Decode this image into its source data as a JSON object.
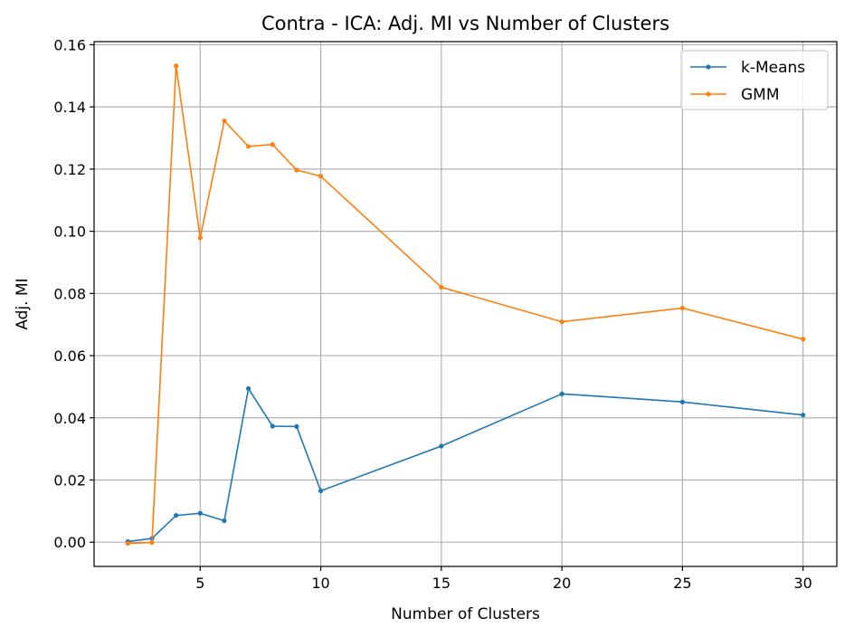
{
  "chart_data": {
    "type": "line",
    "title": "Contra - ICA: Adj. MI vs Number of Clusters",
    "xlabel": "Number of Clusters",
    "ylabel": "Adj. MI",
    "xlim": [
      0.6,
      31.4
    ],
    "ylim": [
      -0.0078,
      0.161
    ],
    "xticks": [
      5,
      10,
      15,
      20,
      25,
      30
    ],
    "yticks": [
      0.0,
      0.02,
      0.04,
      0.06,
      0.08,
      0.1,
      0.12,
      0.14,
      0.16
    ],
    "xtick_labels": [
      "5",
      "10",
      "15",
      "20",
      "25",
      "30"
    ],
    "ytick_labels": [
      "0.00",
      "0.02",
      "0.04",
      "0.06",
      "0.08",
      "0.10",
      "0.12",
      "0.14",
      "0.16"
    ],
    "grid": true,
    "legend_position": "top-right",
    "x": [
      2,
      3,
      4,
      5,
      6,
      7,
      8,
      9,
      10,
      15,
      20,
      25,
      30
    ],
    "series": [
      {
        "name": "k-Means",
        "color": "#1f77b4",
        "values": [
          0.0002,
          0.0012,
          0.0086,
          0.0093,
          0.0069,
          0.0494,
          0.0373,
          0.0372,
          0.0165,
          0.0309,
          0.0477,
          0.0451,
          0.0409
        ]
      },
      {
        "name": "GMM",
        "color": "#ff7f0e",
        "values": [
          -0.0004,
          -0.0001,
          0.1532,
          0.0979,
          0.1355,
          0.1273,
          0.1279,
          0.1197,
          0.1177,
          0.082,
          0.0709,
          0.0753,
          0.0653
        ]
      }
    ]
  }
}
